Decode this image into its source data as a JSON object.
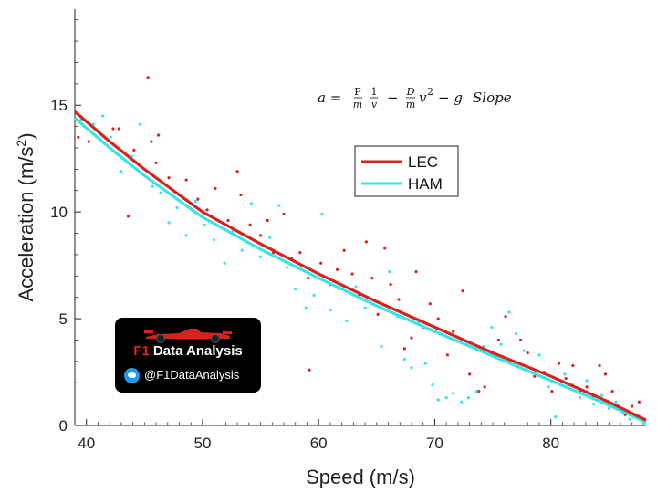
{
  "chart_data": {
    "type": "scatter",
    "xlabel": "Speed (m/s)",
    "ylabel_base": "Acceleration (m/s",
    "ylabel_sup": "2",
    "ylabel_close": ")",
    "xlim": [
      39,
      88.2
    ],
    "ylim": [
      0,
      19.5
    ],
    "x_ticks": [
      40,
      50,
      60,
      70,
      80
    ],
    "y_ticks": [
      0,
      5,
      10,
      15
    ],
    "grid": false,
    "legend_position": "upper-center",
    "annotation": {
      "lhs": "a =",
      "t1_num": "P",
      "t1_den": "m",
      "t2_num": "1",
      "t2_den": "v",
      "minus": "−",
      "t3_num": "D",
      "t3_den": "m",
      "t3_var": "v",
      "t3_exp": "2",
      "t4": "− g",
      "t4_word": "Slope"
    },
    "series": [
      {
        "name": "LEC",
        "color": "#d8221e",
        "fit": [
          [
            39,
            14.7
          ],
          [
            42,
            13.3
          ],
          [
            45,
            12.0
          ],
          [
            50,
            10.0
          ],
          [
            55,
            8.5
          ],
          [
            60,
            7.1
          ],
          [
            65,
            5.8
          ],
          [
            70,
            4.6
          ],
          [
            75,
            3.4
          ],
          [
            80,
            2.3
          ],
          [
            85,
            1.1
          ],
          [
            88.2,
            0.25
          ]
        ],
        "points": [
          [
            39.3,
            13.5
          ],
          [
            40.2,
            13.3
          ],
          [
            42.3,
            13.9
          ],
          [
            42.8,
            13.9
          ],
          [
            43.6,
            9.8
          ],
          [
            44.1,
            12.9
          ],
          [
            45.3,
            16.3
          ],
          [
            45.6,
            13.3
          ],
          [
            46.2,
            13.6
          ],
          [
            46.0,
            12.3
          ],
          [
            47.1,
            11.6
          ],
          [
            48.0,
            10.8
          ],
          [
            48.6,
            11.5
          ],
          [
            49.6,
            10.6
          ],
          [
            50.4,
            10.1
          ],
          [
            51.1,
            11.1
          ],
          [
            52.2,
            9.6
          ],
          [
            53.0,
            11.9
          ],
          [
            53.3,
            10.8
          ],
          [
            54.1,
            9.4
          ],
          [
            55.0,
            8.9
          ],
          [
            55.6,
            9.6
          ],
          [
            56.1,
            8.1
          ],
          [
            57.0,
            9.9
          ],
          [
            57.7,
            7.8
          ],
          [
            58.4,
            8.1
          ],
          [
            59.1,
            6.9
          ],
          [
            59.2,
            2.6
          ],
          [
            60.2,
            7.6
          ],
          [
            61.0,
            6.6
          ],
          [
            61.6,
            7.3
          ],
          [
            62.2,
            8.2
          ],
          [
            62.9,
            7.1
          ],
          [
            63.5,
            6.1
          ],
          [
            64.1,
            8.6
          ],
          [
            64.6,
            6.9
          ],
          [
            65.1,
            5.2
          ],
          [
            65.7,
            8.3
          ],
          [
            66.2,
            6.6
          ],
          [
            66.9,
            5.9
          ],
          [
            67.4,
            3.6
          ],
          [
            68.0,
            4.1
          ],
          [
            68.4,
            7.2
          ],
          [
            69.0,
            4.6
          ],
          [
            69.6,
            5.7
          ],
          [
            70.3,
            5.0
          ],
          [
            71.1,
            3.3
          ],
          [
            71.6,
            4.4
          ],
          [
            72.4,
            6.3
          ],
          [
            73.0,
            2.4
          ],
          [
            73.8,
            1.6
          ],
          [
            74.3,
            1.8
          ],
          [
            74.9,
            3.4
          ],
          [
            75.5,
            4.0
          ],
          [
            76.1,
            5.1
          ],
          [
            76.8,
            3.0
          ],
          [
            77.4,
            4.0
          ],
          [
            78.0,
            3.4
          ],
          [
            78.6,
            2.3
          ],
          [
            79.4,
            2.5
          ],
          [
            80.1,
            1.6
          ],
          [
            80.7,
            2.9
          ],
          [
            81.3,
            2.2
          ],
          [
            81.9,
            2.8
          ],
          [
            82.5,
            1.6
          ],
          [
            83.1,
            1.8
          ],
          [
            83.6,
            1.3
          ],
          [
            84.2,
            2.8
          ],
          [
            84.7,
            2.4
          ],
          [
            85.3,
            1.6
          ],
          [
            85.8,
            0.9
          ],
          [
            86.4,
            0.5
          ],
          [
            87.0,
            0.9
          ],
          [
            87.6,
            1.1
          ],
          [
            88.0,
            0.3
          ]
        ]
      },
      {
        "name": "HAM",
        "color": "#33e6ea",
        "fit": [
          [
            39,
            14.4
          ],
          [
            42,
            13.0
          ],
          [
            45,
            11.7
          ],
          [
            50,
            9.75
          ],
          [
            55,
            8.25
          ],
          [
            60,
            6.9
          ],
          [
            65,
            5.6
          ],
          [
            70,
            4.4
          ],
          [
            75,
            3.25
          ],
          [
            80,
            2.1
          ],
          [
            85,
            0.95
          ],
          [
            88.2,
            0.15
          ]
        ],
        "points": [
          [
            39.5,
            14.3
          ],
          [
            40.6,
            14.1
          ],
          [
            41.4,
            14.5
          ],
          [
            42.1,
            13.5
          ],
          [
            43.0,
            11.9
          ],
          [
            43.9,
            12.6
          ],
          [
            44.6,
            14.1
          ],
          [
            45.7,
            11.2
          ],
          [
            46.4,
            10.9
          ],
          [
            47.1,
            9.5
          ],
          [
            47.8,
            10.2
          ],
          [
            48.6,
            8.9
          ],
          [
            49.4,
            10.5
          ],
          [
            50.2,
            9.4
          ],
          [
            51.0,
            8.7
          ],
          [
            51.9,
            7.6
          ],
          [
            52.6,
            9.1
          ],
          [
            53.4,
            8.2
          ],
          [
            54.2,
            10.4
          ],
          [
            55.0,
            7.9
          ],
          [
            55.8,
            8.8
          ],
          [
            56.6,
            10.3
          ],
          [
            57.3,
            7.4
          ],
          [
            58.0,
            6.4
          ],
          [
            58.9,
            5.5
          ],
          [
            59.6,
            6.1
          ],
          [
            60.3,
            9.9
          ],
          [
            61.0,
            5.4
          ],
          [
            61.7,
            6.4
          ],
          [
            62.4,
            4.9
          ],
          [
            63.2,
            6.5
          ],
          [
            64.0,
            5.5
          ],
          [
            64.8,
            5.9
          ],
          [
            65.4,
            3.7
          ],
          [
            66.1,
            7.2
          ],
          [
            66.8,
            5.1
          ],
          [
            67.4,
            3.1
          ],
          [
            68.0,
            2.7
          ],
          [
            68.6,
            4.8
          ],
          [
            69.2,
            2.9
          ],
          [
            69.8,
            1.9
          ],
          [
            70.3,
            1.2
          ],
          [
            71.0,
            1.3
          ],
          [
            71.6,
            1.5
          ],
          [
            72.3,
            1.1
          ],
          [
            72.9,
            1.3
          ],
          [
            73.6,
            1.6
          ],
          [
            74.2,
            3.7
          ],
          [
            74.9,
            4.6
          ],
          [
            75.7,
            3.8
          ],
          [
            76.4,
            5.3
          ],
          [
            77.0,
            4.3
          ],
          [
            77.7,
            3.5
          ],
          [
            78.3,
            2.7
          ],
          [
            79.0,
            3.3
          ],
          [
            79.8,
            1.8
          ],
          [
            80.4,
            0.4
          ],
          [
            81.2,
            2.4
          ],
          [
            81.9,
            1.9
          ],
          [
            82.5,
            1.3
          ],
          [
            83.1,
            2.1
          ],
          [
            83.7,
            1.0
          ],
          [
            84.4,
            1.4
          ],
          [
            85.0,
            0.8
          ],
          [
            85.6,
            1.1
          ],
          [
            86.2,
            0.6
          ],
          [
            86.8,
            0.3
          ],
          [
            87.4,
            0.4
          ],
          [
            88.0,
            0.1
          ]
        ]
      }
    ]
  },
  "badge": {
    "title_f1": "F1",
    "title_rest": " Data Analysis",
    "handle": "@F1DataAnalysis",
    "icon": "twitter-icon",
    "car_icon": "f1-car-icon",
    "bg": "#000000"
  }
}
